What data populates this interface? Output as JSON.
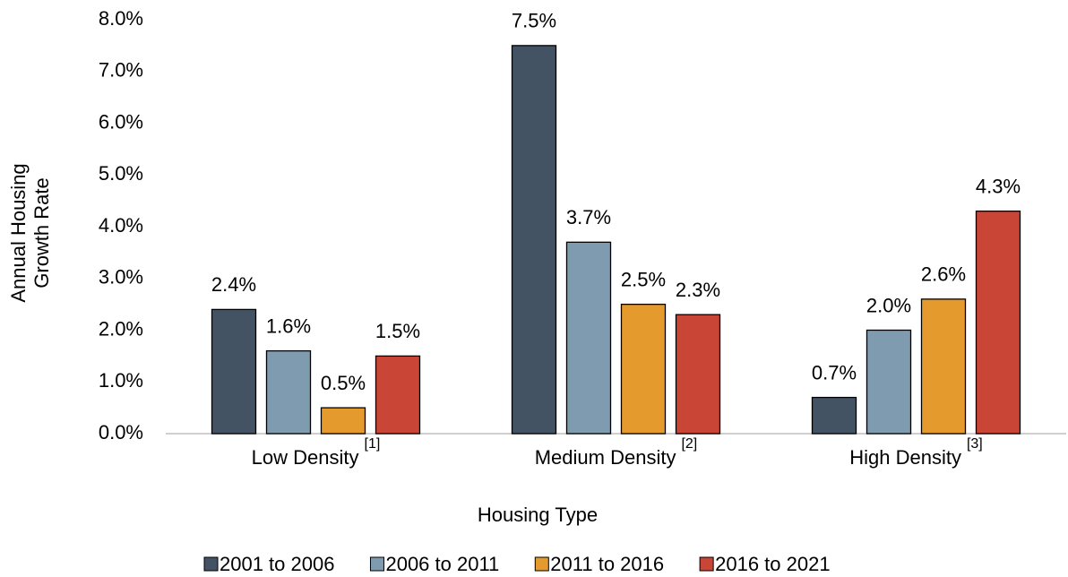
{
  "chart_data": {
    "type": "bar",
    "ylabel": [
      "Annual Housing",
      "Growth Rate"
    ],
    "xlabel": "Housing Type",
    "categories": [
      "Low Density",
      "Medium Density",
      "High Density"
    ],
    "category_notes": [
      "[1]",
      "[2]",
      "[3]"
    ],
    "series": [
      {
        "name": "2001 to 2006",
        "color": "#435363",
        "values": [
          2.4,
          7.5,
          0.7
        ],
        "value_labels": [
          "2.4%",
          "7.5%",
          "0.7%"
        ]
      },
      {
        "name": "2006 to 2011",
        "color": "#7f9bb0",
        "values": [
          1.6,
          3.7,
          2.0
        ],
        "value_labels": [
          "1.6%",
          "3.7%",
          "2.0%"
        ]
      },
      {
        "name": "2011 to 2016",
        "color": "#e59a2e",
        "values": [
          0.5,
          2.5,
          2.6
        ],
        "value_labels": [
          "0.5%",
          "2.5%",
          "2.6%"
        ]
      },
      {
        "name": "2016 to 2021",
        "color": "#c94536",
        "values": [
          1.5,
          2.3,
          4.3
        ],
        "value_labels": [
          "1.5%",
          "2.3%",
          "4.3%"
        ]
      }
    ],
    "ylim": [
      0,
      8
    ],
    "yticks": [
      {
        "value": 0,
        "label": "0.0%"
      },
      {
        "value": 1,
        "label": "1.0%"
      },
      {
        "value": 2,
        "label": "2.0%"
      },
      {
        "value": 3,
        "label": "3.0%"
      },
      {
        "value": 4,
        "label": "4.0%"
      },
      {
        "value": 5,
        "label": "5.0%"
      },
      {
        "value": 6,
        "label": "6.0%"
      },
      {
        "value": 7,
        "label": "7.0%"
      },
      {
        "value": 8,
        "label": "8.0%"
      }
    ],
    "grid": false,
    "legend": "bottom"
  }
}
